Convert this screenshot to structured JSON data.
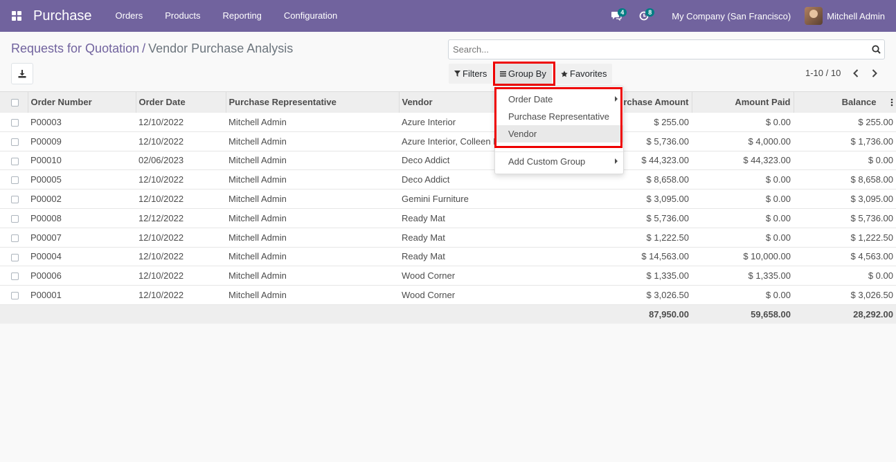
{
  "navbar": {
    "app_name": "Purchase",
    "menu": [
      "Orders",
      "Products",
      "Reporting",
      "Configuration"
    ],
    "messages_count": "4",
    "activities_count": "8",
    "company": "My Company (San Francisco)",
    "user": "Mitchell Admin",
    "color": "#71639e"
  },
  "breadcrumb": {
    "parent": "Requests for Quotation",
    "separator": "/",
    "current": "Vendor Purchase Analysis"
  },
  "search": {
    "placeholder": "Search...",
    "value": ""
  },
  "toolbar": {
    "filters": "Filters",
    "group_by": "Group By",
    "favorites": "Favorites"
  },
  "pager": {
    "value": "1-10 / 10"
  },
  "group_by_menu": {
    "items": [
      "Order Date",
      "Purchase Representative",
      "Vendor"
    ],
    "custom": "Add Custom Group",
    "active": "Vendor"
  },
  "table": {
    "columns": [
      "Order Number",
      "Order Date",
      "Purchase Representative",
      "Vendor",
      "Purchase Amount",
      "Amount Paid",
      "Balance"
    ],
    "rows": [
      [
        "P00003",
        "12/10/2022",
        "Mitchell Admin",
        "Azure Interior",
        "$ 255.00",
        "$ 0.00",
        "$ 255.00"
      ],
      [
        "P00009",
        "12/10/2022",
        "Mitchell Admin",
        "Azure Interior, Colleen Diaz",
        "$ 5,736.00",
        "$ 4,000.00",
        "$ 1,736.00"
      ],
      [
        "P00010",
        "02/06/2023",
        "Mitchell Admin",
        "Deco Addict",
        "$ 44,323.00",
        "$ 44,323.00",
        "$ 0.00"
      ],
      [
        "P00005",
        "12/10/2022",
        "Mitchell Admin",
        "Deco Addict",
        "$ 8,658.00",
        "$ 0.00",
        "$ 8,658.00"
      ],
      [
        "P00002",
        "12/10/2022",
        "Mitchell Admin",
        "Gemini Furniture",
        "$ 3,095.00",
        "$ 0.00",
        "$ 3,095.00"
      ],
      [
        "P00008",
        "12/12/2022",
        "Mitchell Admin",
        "Ready Mat",
        "$ 5,736.00",
        "$ 0.00",
        "$ 5,736.00"
      ],
      [
        "P00007",
        "12/10/2022",
        "Mitchell Admin",
        "Ready Mat",
        "$ 1,222.50",
        "$ 0.00",
        "$ 1,222.50"
      ],
      [
        "P00004",
        "12/10/2022",
        "Mitchell Admin",
        "Ready Mat",
        "$ 14,563.00",
        "$ 10,000.00",
        "$ 4,563.00"
      ],
      [
        "P00006",
        "12/10/2022",
        "Mitchell Admin",
        "Wood Corner",
        "$ 1,335.00",
        "$ 1,335.00",
        "$ 0.00"
      ],
      [
        "P00001",
        "12/10/2022",
        "Mitchell Admin",
        "Wood Corner",
        "$ 3,026.50",
        "$ 0.00",
        "$ 3,026.50"
      ]
    ],
    "totals": {
      "purchase_amount": "87,950.00",
      "amount_paid": "59,658.00",
      "balance": "28,292.00"
    }
  }
}
